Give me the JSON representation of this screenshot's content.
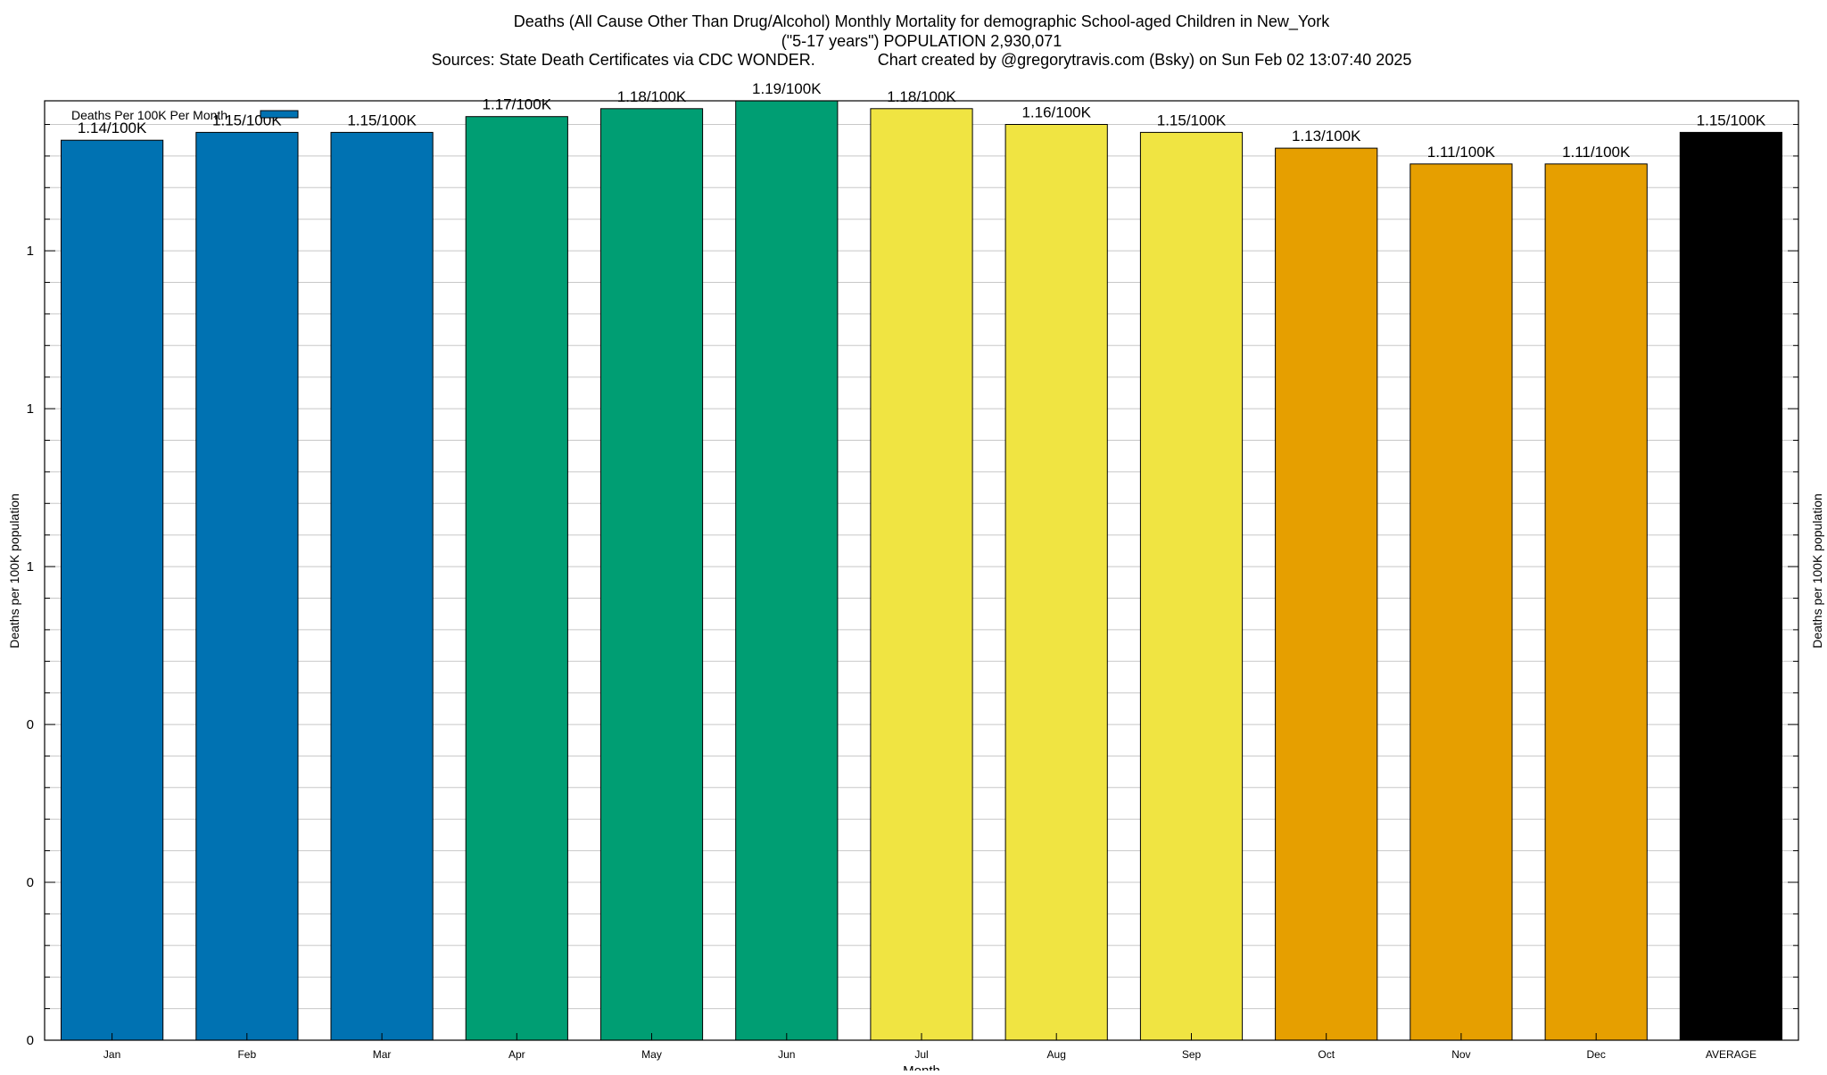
{
  "chart_data": {
    "type": "bar",
    "title_lines": [
      "Deaths (All Cause Other Than Drug/Alcohol) Monthly Mortality for demographic School-aged Children in New_York",
      "(\"5-17 years\") POPULATION 2,930,071",
      "Sources: State Death Certificates via CDC WONDER.              Chart created by @gregorytravis.com (Bsky) on Sun Feb 02 13:07:40 2025"
    ],
    "xlabel": "Month",
    "ylabel": "Deaths per 100K population",
    "y2label": "Deaths per 100K population",
    "legend": {
      "label": "Deaths Per 100K Per Month",
      "position": "top-left",
      "swatch_color": "#0072b2"
    },
    "ylim": [
      0,
      1.19
    ],
    "y_tick_labels": [
      "0",
      "0",
      "0",
      "1",
      "1",
      "1"
    ],
    "y_tick_values": [
      0,
      0.2,
      0.4,
      0.6,
      0.8,
      1.0
    ],
    "categories": [
      "Jan",
      "Feb",
      "Mar",
      "Apr",
      "May",
      "Jun",
      "Jul",
      "Aug",
      "Sep",
      "Oct",
      "Nov",
      "Dec",
      "AVERAGE"
    ],
    "values": [
      1.14,
      1.15,
      1.15,
      1.17,
      1.18,
      1.19,
      1.18,
      1.16,
      1.15,
      1.13,
      1.11,
      1.11,
      1.15
    ],
    "data_labels": [
      "1.14/100K",
      "1.15/100K",
      "1.15/100K",
      "1.17/100K",
      "1.18/100K",
      "1.19/100K",
      "1.18/100K",
      "1.16/100K",
      "1.15/100K",
      "1.13/100K",
      "1.11/100K",
      "1.11/100K",
      "1.15/100K"
    ],
    "colors": [
      "#0072b2",
      "#0072b2",
      "#0072b2",
      "#009e73",
      "#009e73",
      "#009e73",
      "#f0e442",
      "#f0e442",
      "#f0e442",
      "#e69f00",
      "#e69f00",
      "#e69f00",
      "#000000"
    ],
    "grid": true
  }
}
